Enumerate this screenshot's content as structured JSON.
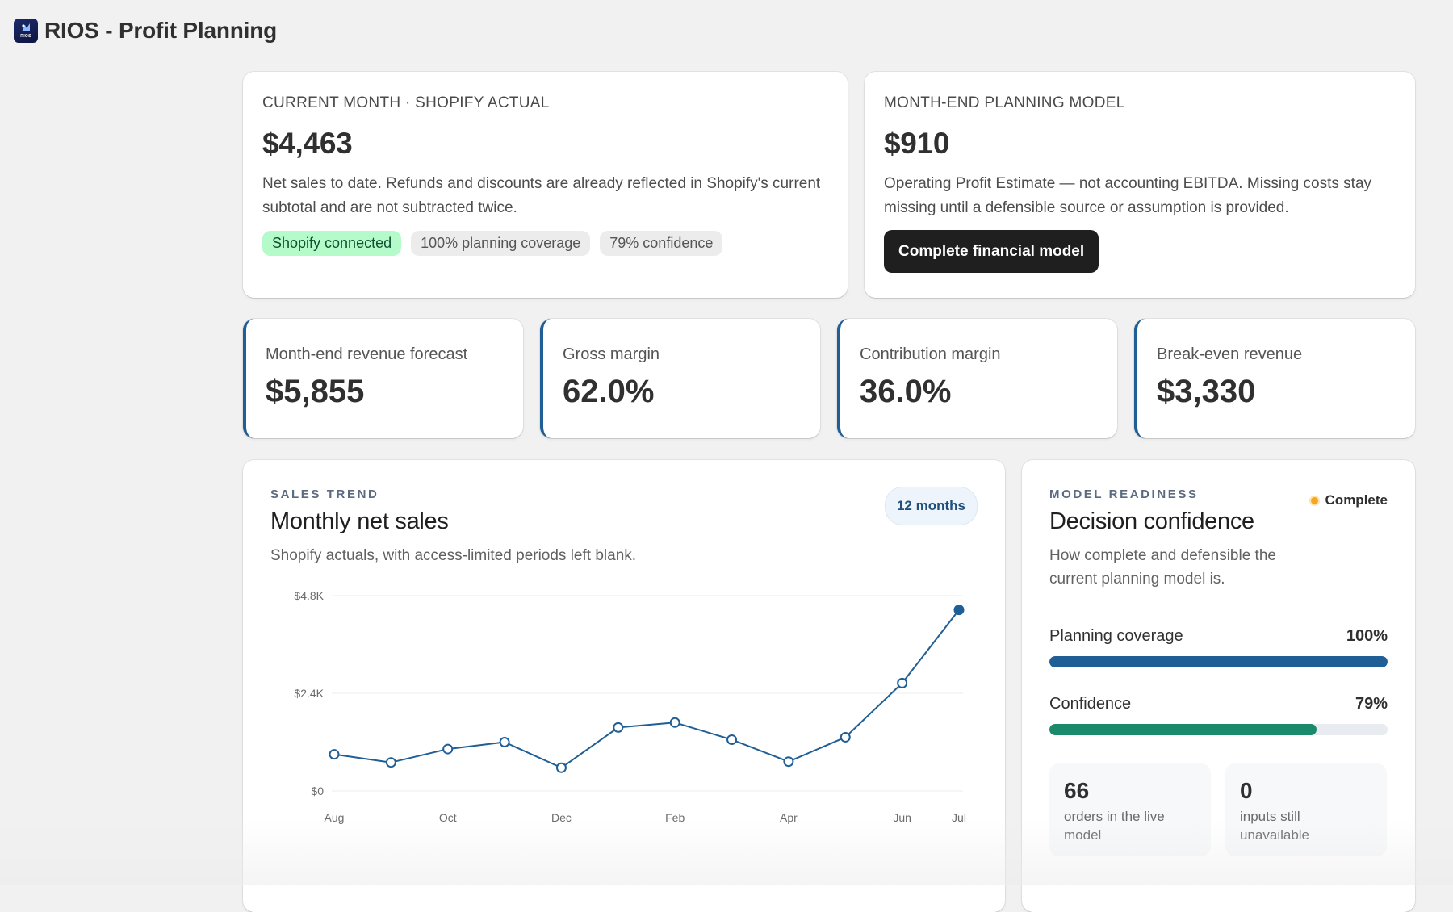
{
  "app": {
    "title": "RIOS - Profit Planning",
    "logo_text": "RIOS"
  },
  "actual_card": {
    "eyebrow": "CURRENT MONTH · SHOPIFY ACTUAL",
    "value": "$4,463",
    "description": "Net sales to date. Refunds and discounts are already reflected in Shopify's current subtotal and are not subtracted twice.",
    "pills": [
      {
        "label": "Shopify connected",
        "color": "#b4fbc9"
      },
      {
        "label": "100% planning coverage"
      },
      {
        "label": "79% confidence"
      }
    ]
  },
  "model_card": {
    "eyebrow": "MONTH-END PLANNING MODEL",
    "value": "$910",
    "description": "Operating Profit Estimate — not accounting EBITDA. Missing costs stay missing until a defensible source or assumption is provided.",
    "button_label": "Complete financial model"
  },
  "kpis": [
    {
      "label": "Month-end revenue forecast",
      "value": "$5,855"
    },
    {
      "label": "Gross margin",
      "value": "62.0%"
    },
    {
      "label": "Contribution margin",
      "value": "36.0%"
    },
    {
      "label": "Break-even revenue",
      "value": "$3,330"
    }
  ],
  "kpi_accent": "#1f5f96",
  "trend": {
    "eyebrow": "SALES TREND",
    "title": "Monthly net sales",
    "subtitle": "Shopify actuals, with access-limited periods left blank.",
    "range_chip": "12 months"
  },
  "chart_data": {
    "type": "line",
    "title": "",
    "xlabel": "",
    "ylabel": "",
    "x": [
      "Aug",
      "Sep",
      "Oct",
      "Nov",
      "Dec",
      "Jan",
      "Feb",
      "Mar",
      "Apr",
      "May",
      "Jun",
      "Jul"
    ],
    "tick_labels": [
      "Aug",
      "",
      "Oct",
      "",
      "Dec",
      "",
      "Feb",
      "",
      "Apr",
      "",
      "Jun",
      "Jul"
    ],
    "values": [
      900,
      700,
      1030,
      1200,
      570,
      1560,
      1680,
      1260,
      720,
      1320,
      2650,
      4450
    ],
    "y_ticks": [
      {
        "value": 0,
        "label": "$0"
      },
      {
        "value": 2400,
        "label": "$2.4K"
      },
      {
        "value": 4800,
        "label": "$4.8K"
      }
    ],
    "ylim": [
      0,
      4800
    ],
    "grid": true,
    "line_color": "#1f5f96",
    "last_point_filled": true
  },
  "readiness": {
    "eyebrow": "MODEL READINESS",
    "status": "Complete",
    "status_color": "#f5a623",
    "title": "Decision confidence",
    "subtitle": "How complete and defensible the current planning model is.",
    "meters": [
      {
        "label": "Planning coverage",
        "pct_label": "100%",
        "value": 1.0,
        "color": "#1f5f96"
      },
      {
        "label": "Confidence",
        "pct_label": "79%",
        "value": 0.79,
        "color": "#1a8a6a"
      }
    ],
    "stats": [
      {
        "num": "66",
        "text": "orders in the live model"
      },
      {
        "num": "0",
        "text": "inputs still unavailable"
      }
    ]
  }
}
